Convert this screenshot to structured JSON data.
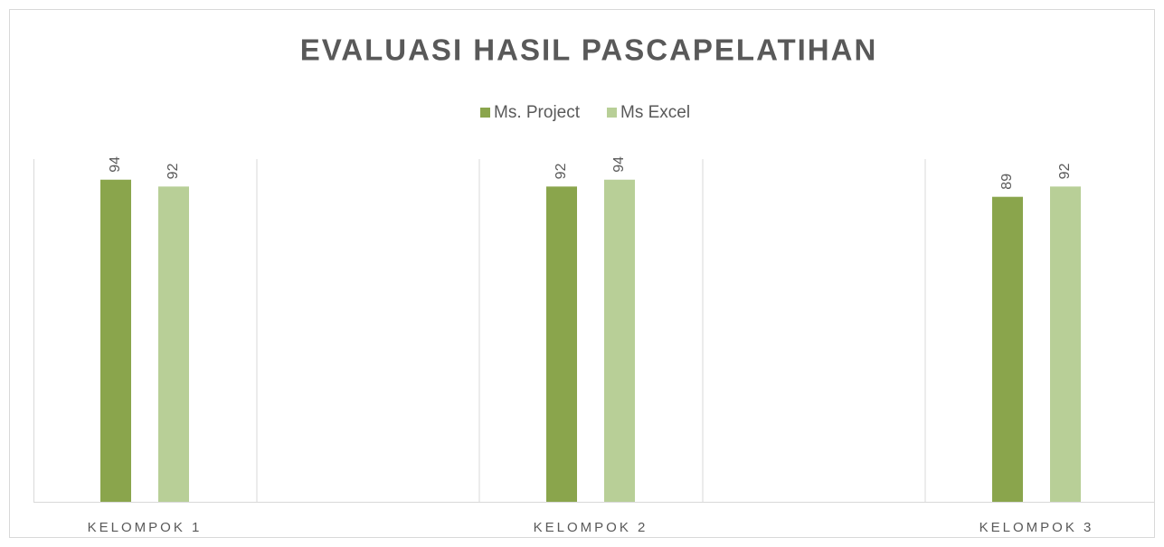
{
  "chart_data": {
    "type": "bar",
    "title": "EVALUASI HASIL PASCAPELATIHAN",
    "categories": [
      "KELOMPOK 1",
      "KELOMPOK 2",
      "KELOMPOK 3"
    ],
    "series": [
      {
        "name": "Ms. Project",
        "color": "#8aa54c",
        "values": [
          94,
          92,
          89
        ]
      },
      {
        "name": "Ms Excel",
        "color": "#b8cf97",
        "values": [
          92,
          94,
          92
        ]
      }
    ],
    "ylim": [
      0,
      100
    ],
    "legend": "top"
  }
}
